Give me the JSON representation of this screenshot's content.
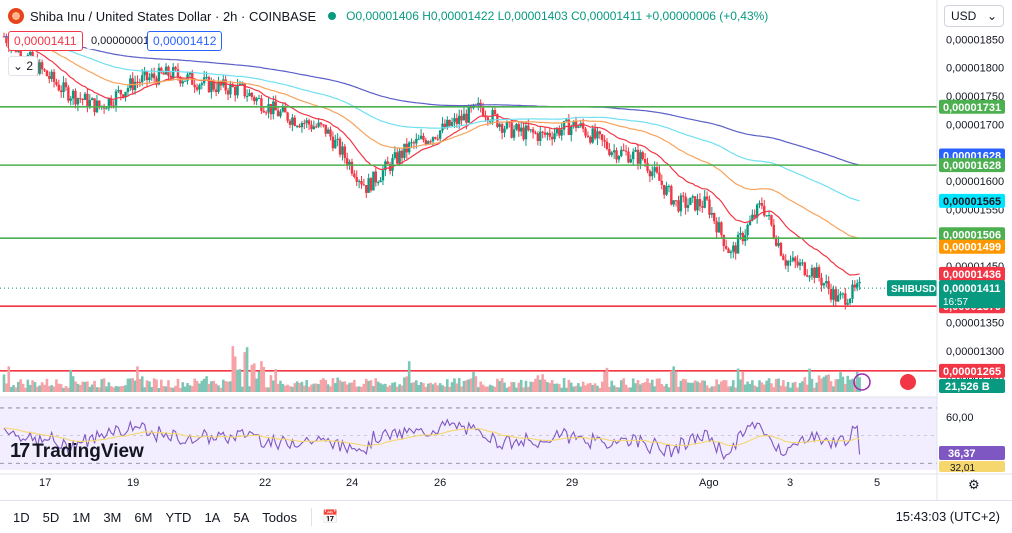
{
  "header": {
    "symbol": "Shiba Inu",
    "desc": "United States Dollar · 2h · COINBASE",
    "ohlc": "O0,00001406 H0,00001422 L0,00001403 C0,00001411 +0,00000006 (+0,43%)"
  },
  "sell_box": "0,00001411",
  "spread": "0,00000001",
  "buy_box": "0,00001412",
  "layers": "2",
  "currency": "USD",
  "logo_text": "TradingView",
  "periods": [
    "1D",
    "5D",
    "1M",
    "3M",
    "6M",
    "YTD",
    "1A",
    "5A",
    "Todos"
  ],
  "clock": "15:43:03 (UTC+2)",
  "colors": {
    "up": "#089981",
    "down": "#f23645",
    "ema_red": "#f23645",
    "ema_orange": "#f7a35c",
    "ema_cyan": "#6fe0f0",
    "ema_purple": "#5b5fc7",
    "green_line": "#4caf50",
    "red_line": "#f23645",
    "rsi": "#7e57c2",
    "rsi_ma": "#f5d76e"
  },
  "chart_data": {
    "type": "candlestick",
    "price_axis_ticks": [
      "0,00001850",
      "0,00001800",
      "0,00001750",
      "0,00001700",
      "0,00001650",
      "0,00001600",
      "0,00001550",
      "0,00001500",
      "0,00001450",
      "0,00001400",
      "0,00001350",
      "0,00001300",
      "0,00001250"
    ],
    "time_axis_ticks": [
      "17",
      "19",
      "22",
      "24",
      "26",
      "29",
      "Ago",
      "3",
      "5"
    ],
    "ylim": [
      1.24e-05,
      1.87e-05
    ],
    "horizontal_lines": [
      {
        "value": 1.731e-05,
        "label": "0,00001731",
        "color": "green"
      },
      {
        "value": 1.628e-05,
        "label": "0,00001628",
        "color": "green"
      },
      {
        "value": 1.499e-05,
        "label": "0,00001499",
        "color": "green"
      },
      {
        "value": 1.379e-05,
        "label": "0,00001379",
        "color": "red"
      },
      {
        "value": 1.265e-05,
        "label": "0,00001265",
        "color": "red"
      }
    ],
    "price_labels": [
      {
        "text": "0,00001731",
        "value": 1.731e-05,
        "bg": "#4caf50"
      },
      {
        "text": "0,00001628",
        "value": 1.645e-05,
        "bg": "#2962ff"
      },
      {
        "text": "0,00001628",
        "value": 1.628e-05,
        "bg": "#4caf50"
      },
      {
        "text": "0,00001565",
        "value": 1.565e-05,
        "bg": "#00e5ff",
        "fg": "#131722"
      },
      {
        "text": "0,00001506",
        "value": 1.506e-05,
        "bg": "#4caf50"
      },
      {
        "text": "0,00001499",
        "value": 1.484e-05,
        "bg": "#ff9800"
      },
      {
        "text": "0,00001436",
        "value": 1.436e-05,
        "bg": "#f23645"
      },
      {
        "text": "0,00001379",
        "value": 1.379e-05,
        "bg": "#f23645"
      },
      {
        "text": "0,00001265",
        "value": 1.265e-05,
        "bg": "#f23645"
      }
    ],
    "last_price": {
      "ticker": "SHIBUSD",
      "value": "0,00001411",
      "countdown": "16:57"
    },
    "volume_label": "21,526 B",
    "ema_endpoints": {
      "red": 1.436e-05,
      "orange": 1.499e-05,
      "cyan": 1.565e-05,
      "purple": 1.628e-05
    },
    "closes_anchor": [
      [
        0,
        1.855e-05
      ],
      [
        25,
        1.76e-05
      ],
      [
        40,
        1.73e-05
      ],
      [
        55,
        1.775e-05
      ],
      [
        70,
        1.79e-05
      ],
      [
        85,
        1.77e-05
      ],
      [
        100,
        1.76e-05
      ],
      [
        115,
        1.72e-05
      ],
      [
        135,
        1.69e-05
      ],
      [
        152,
        1.59e-05
      ],
      [
        170,
        1.66e-05
      ],
      [
        188,
        1.7e-05
      ],
      [
        200,
        1.73e-05
      ],
      [
        212,
        1.69e-05
      ],
      [
        226,
        1.68e-05
      ],
      [
        240,
        1.7e-05
      ],
      [
        255,
        1.655e-05
      ],
      [
        268,
        1.64e-05
      ],
      [
        282,
        1.56e-05
      ],
      [
        295,
        1.56e-05
      ],
      [
        305,
        1.47e-05
      ],
      [
        318,
        1.56e-05
      ],
      [
        328,
        1.46e-05
      ],
      [
        340,
        1.44e-05
      ],
      [
        350,
        1.39e-05
      ],
      [
        360,
        1.411e-05
      ]
    ],
    "rsi": {
      "levels": [
        "60,00",
        "36,37",
        "32,01"
      ],
      "current": 36.37,
      "ma": 32.01,
      "ylim": [
        28,
        75
      ],
      "bands": [
        70,
        30
      ]
    }
  }
}
